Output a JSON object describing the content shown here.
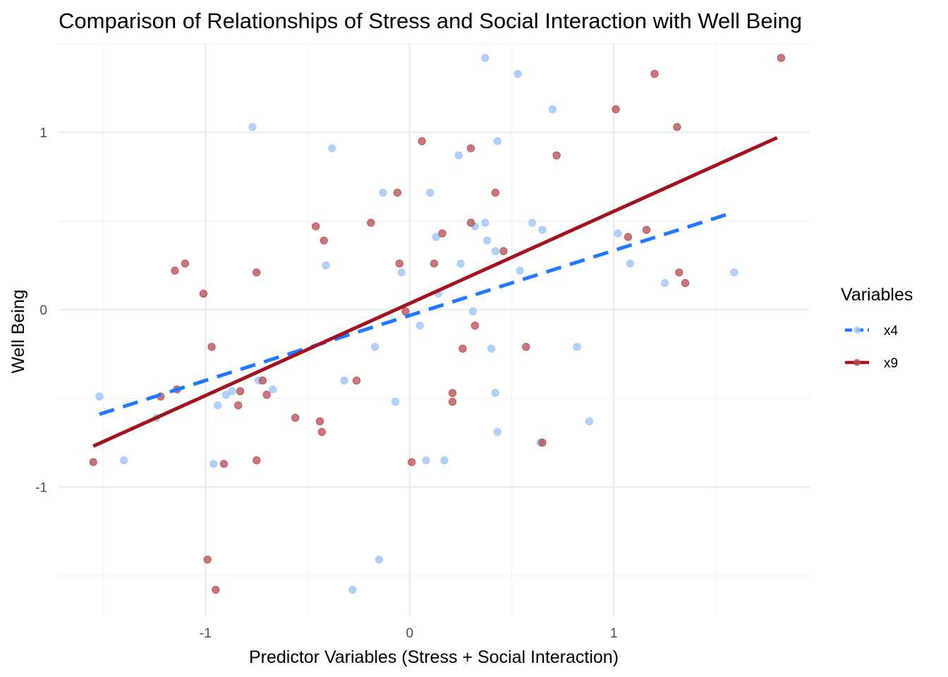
{
  "chart_data": {
    "type": "scatter",
    "title": "Comparison of Relationships of Stress and Social Interaction with Well Being",
    "xlabel": "Predictor Variables (Stress + Social Interaction)",
    "ylabel": "Well Being",
    "xlim": [
      -1.72,
      1.96
    ],
    "ylim": [
      -1.73,
      1.5
    ],
    "x_ticks": [
      -1,
      0,
      1
    ],
    "x_tick_labels": [
      "-1",
      "0",
      "1"
    ],
    "y_ticks": [
      -1,
      0,
      1
    ],
    "y_tick_labels": [
      "-1",
      "0",
      "1"
    ],
    "grid": true,
    "legend": {
      "title": "Variables",
      "position": "right"
    },
    "series": [
      {
        "name": "x4",
        "color": "#1f78ff",
        "point_color": "#a6c8f7",
        "line_style": "dashed",
        "points": [
          [
            -1.52,
            -0.49
          ],
          [
            -1.4,
            -0.85
          ],
          [
            -1.24,
            -0.61
          ],
          [
            -0.96,
            -0.87
          ],
          [
            -0.94,
            -0.54
          ],
          [
            -0.9,
            -0.48
          ],
          [
            -0.87,
            -0.46
          ],
          [
            -0.77,
            1.03
          ],
          [
            -0.74,
            -0.4
          ],
          [
            -0.67,
            -0.45
          ],
          [
            -0.41,
            0.25
          ],
          [
            -0.38,
            0.91
          ],
          [
            -0.32,
            -0.4
          ],
          [
            -0.28,
            -1.58
          ],
          [
            -0.17,
            -0.21
          ],
          [
            -0.15,
            -1.41
          ],
          [
            -0.13,
            0.66
          ],
          [
            -0.07,
            -0.52
          ],
          [
            -0.04,
            0.21
          ],
          [
            0.05,
            -0.09
          ],
          [
            0.08,
            -0.85
          ],
          [
            0.1,
            0.66
          ],
          [
            0.13,
            0.41
          ],
          [
            0.14,
            0.09
          ],
          [
            0.17,
            -0.85
          ],
          [
            0.24,
            0.87
          ],
          [
            0.25,
            0.26
          ],
          [
            0.31,
            -0.01
          ],
          [
            0.32,
            0.47
          ],
          [
            0.37,
            1.42
          ],
          [
            0.37,
            0.49
          ],
          [
            0.38,
            0.39
          ],
          [
            0.4,
            -0.22
          ],
          [
            0.42,
            -0.47
          ],
          [
            0.42,
            0.33
          ],
          [
            0.43,
            0.95
          ],
          [
            0.43,
            -0.69
          ],
          [
            0.53,
            1.33
          ],
          [
            0.54,
            0.22
          ],
          [
            0.6,
            0.49
          ],
          [
            0.64,
            -0.75
          ],
          [
            0.65,
            0.45
          ],
          [
            0.7,
            1.13
          ],
          [
            0.82,
            -0.21
          ],
          [
            0.88,
            -0.63
          ],
          [
            1.02,
            0.43
          ],
          [
            1.08,
            0.26
          ],
          [
            1.25,
            0.15
          ],
          [
            1.59,
            0.21
          ]
        ],
        "fit": {
          "x": [
            -1.52,
            1.59
          ],
          "y": [
            -0.59,
            0.55
          ]
        }
      },
      {
        "name": "x9",
        "color": "#a3131f",
        "point_color": "#b54a52",
        "line_style": "solid",
        "points": [
          [
            -1.55,
            -0.86
          ],
          [
            -1.22,
            -0.49
          ],
          [
            -1.14,
            -0.45
          ],
          [
            -1.15,
            0.22
          ],
          [
            -1.1,
            0.26
          ],
          [
            -1.01,
            0.09
          ],
          [
            -0.99,
            -1.41
          ],
          [
            -0.97,
            -0.21
          ],
          [
            -0.95,
            -1.58
          ],
          [
            -0.91,
            -0.87
          ],
          [
            -0.84,
            -0.54
          ],
          [
            -0.83,
            -0.46
          ],
          [
            -0.75,
            0.21
          ],
          [
            -0.75,
            -0.85
          ],
          [
            -0.72,
            -0.4
          ],
          [
            -0.7,
            -0.48
          ],
          [
            -0.56,
            -0.61
          ],
          [
            -0.46,
            0.47
          ],
          [
            -0.44,
            -0.63
          ],
          [
            -0.43,
            -0.69
          ],
          [
            -0.42,
            0.39
          ],
          [
            -0.26,
            -0.4
          ],
          [
            -0.19,
            0.49
          ],
          [
            -0.06,
            0.66
          ],
          [
            -0.05,
            0.26
          ],
          [
            -0.02,
            -0.01
          ],
          [
            0.01,
            -0.86
          ],
          [
            0.06,
            0.95
          ],
          [
            0.12,
            0.26
          ],
          [
            0.16,
            0.43
          ],
          [
            0.21,
            -0.47
          ],
          [
            0.21,
            -0.52
          ],
          [
            0.26,
            -0.22
          ],
          [
            0.3,
            0.91
          ],
          [
            0.3,
            0.49
          ],
          [
            0.32,
            -0.09
          ],
          [
            0.42,
            0.66
          ],
          [
            0.46,
            0.33
          ],
          [
            0.57,
            -0.21
          ],
          [
            0.65,
            -0.75
          ],
          [
            0.72,
            0.87
          ],
          [
            1.01,
            1.13
          ],
          [
            1.07,
            0.41
          ],
          [
            1.16,
            0.45
          ],
          [
            1.2,
            1.33
          ],
          [
            1.31,
            1.03
          ],
          [
            1.32,
            0.21
          ],
          [
            1.35,
            0.15
          ],
          [
            1.82,
            1.42
          ]
        ],
        "fit": {
          "x": [
            -1.55,
            1.8
          ],
          "y": [
            -0.77,
            0.97
          ]
        }
      }
    ]
  }
}
